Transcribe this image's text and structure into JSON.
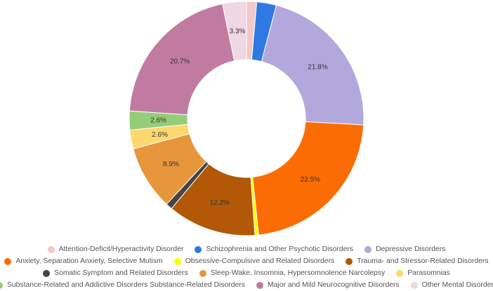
{
  "chart_data": {
    "type": "pie",
    "variant": "donut",
    "title": "",
    "legend_position": "bottom",
    "series": [
      {
        "name": "Attention-Deficit/Hyperactivity Disorder",
        "value": 1.4,
        "color": "#f2c9c9",
        "label": ""
      },
      {
        "name": "Schizophrenia and Other Psychotic Disorders",
        "value": 2.7,
        "color": "#2f79e4",
        "label": ""
      },
      {
        "name": "Depressive Disorders",
        "value": 21.8,
        "color": "#b3a8dc",
        "label": "21.8%"
      },
      {
        "name": "Anxiety, Separation Anxiety, Selective Mutism",
        "value": 22.5,
        "color": "#fb6d04",
        "label": "22.5%"
      },
      {
        "name": "Obsessive-Compulsive and Related Disorders",
        "value": 0.5,
        "color": "#ffff00",
        "label": ""
      },
      {
        "name": "Trauma- and Stressor-Related Disorders",
        "value": 12.2,
        "color": "#b35806",
        "label": "12.2%"
      },
      {
        "name": "Somatic Symptom and Related Disorders",
        "value": 0.9,
        "color": "#444444",
        "label": ""
      },
      {
        "name": "Sleep-Wake, Insomnia, Hypersomnolence Narcolepsy",
        "value": 8.9,
        "color": "#e8963b",
        "label": "8.9%"
      },
      {
        "name": "Parasomnias",
        "value": 2.6,
        "color": "#fed86e",
        "label": "2.6%"
      },
      {
        "name": "Substance-Related and Addictive Disorders Substance-Related Disorders",
        "value": 2.6,
        "color": "#94cc79",
        "label": "2.6%"
      },
      {
        "name": "Major and Mild Neurocognitive Disorders",
        "value": 20.7,
        "color": "#c27ba0",
        "label": "20.7%"
      },
      {
        "name": "Other Mental Disorders",
        "value": 3.3,
        "color": "#efd7e3",
        "label": "3.3%"
      }
    ]
  },
  "legend_rows": [
    [
      0,
      1,
      2
    ],
    [
      3,
      4,
      5
    ],
    [
      6,
      7,
      8
    ],
    [
      9,
      10,
      11
    ]
  ]
}
